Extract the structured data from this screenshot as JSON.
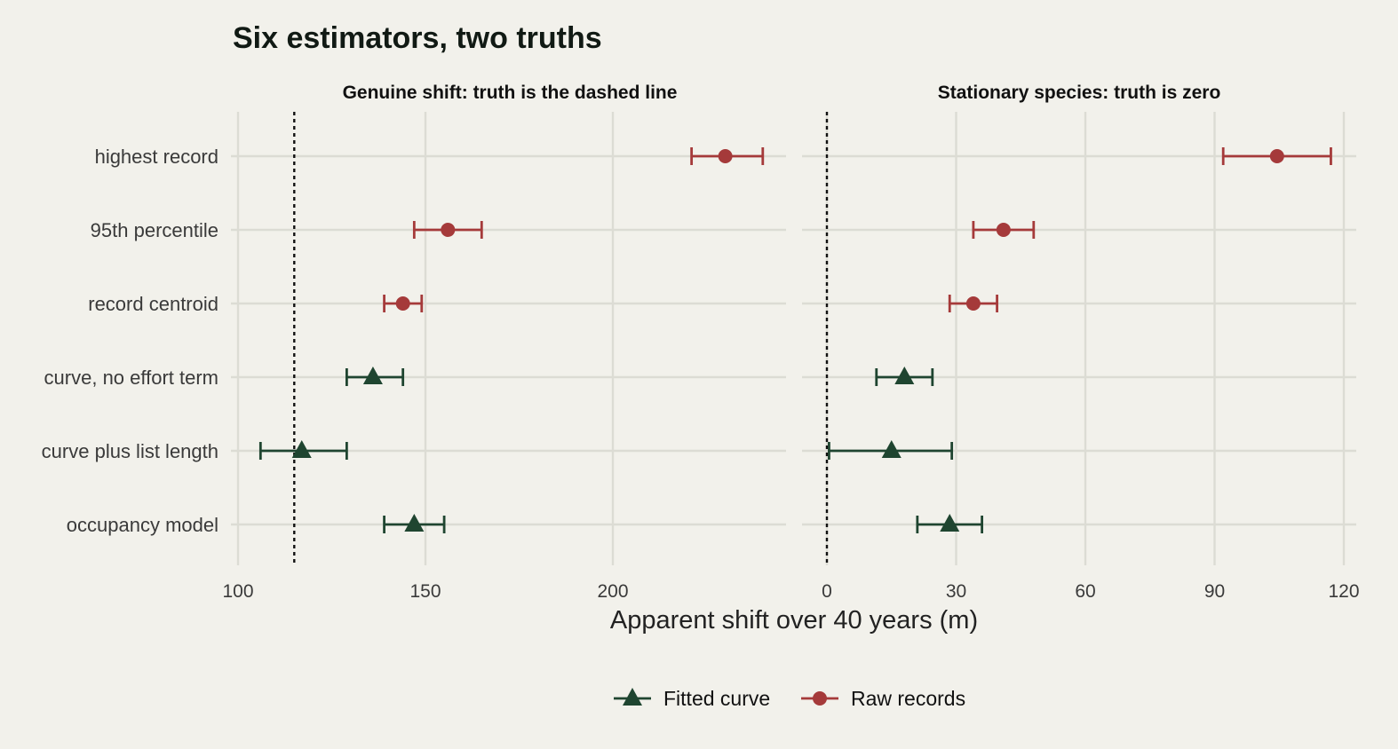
{
  "chart_data": {
    "type": "scatter",
    "title": "Six estimators, two truths",
    "xlabel": "Apparent shift over 40 years (m)",
    "categories": [
      "highest record",
      "95th percentile",
      "record centroid",
      "curve, no effort term",
      "curve plus list length",
      "occupancy model"
    ],
    "colors": {
      "fitted": "#1f4530",
      "raw": "#a53a3a",
      "background": "#f2f1eb"
    },
    "legend": {
      "position": "bottom",
      "items": [
        {
          "key": "fitted",
          "label": "Fitted curve",
          "marker": "triangle"
        },
        {
          "key": "raw",
          "label": "Raw records",
          "marker": "circle"
        }
      ]
    },
    "panels": [
      {
        "strip": "Genuine shift: truth is the dashed line",
        "truth": 115,
        "xlim": [
          100,
          246
        ],
        "ticks": [
          "100",
          "150",
          "200"
        ],
        "tick_values": [
          100,
          150,
          200
        ],
        "points": [
          {
            "estimator": "highest record",
            "group": "raw",
            "estimate": 230,
            "lo": 221,
            "hi": 240
          },
          {
            "estimator": "95th percentile",
            "group": "raw",
            "estimate": 156,
            "lo": 147,
            "hi": 165
          },
          {
            "estimator": "record centroid",
            "group": "raw",
            "estimate": 144,
            "lo": 139,
            "hi": 149
          },
          {
            "estimator": "curve, no effort term",
            "group": "fitted",
            "estimate": 136,
            "lo": 129,
            "hi": 144
          },
          {
            "estimator": "curve plus list length",
            "group": "fitted",
            "estimate": 117,
            "lo": 106,
            "hi": 129
          },
          {
            "estimator": "occupancy model",
            "group": "fitted",
            "estimate": 147,
            "lo": 139,
            "hi": 155
          }
        ]
      },
      {
        "strip": "Stationary species: truth is zero",
        "truth": 0,
        "xlim": [
          0,
          124
        ],
        "ticks": [
          "0",
          "30",
          "60",
          "90",
          "120"
        ],
        "tick_values": [
          0,
          30,
          60,
          90,
          120
        ],
        "points": [
          {
            "estimator": "highest record",
            "group": "raw",
            "estimate": 104.5,
            "lo": 92,
            "hi": 117
          },
          {
            "estimator": "95th percentile",
            "group": "raw",
            "estimate": 41,
            "lo": 34,
            "hi": 48
          },
          {
            "estimator": "record centroid",
            "group": "raw",
            "estimate": 34,
            "lo": 28.5,
            "hi": 39.5
          },
          {
            "estimator": "curve, no effort term",
            "group": "fitted",
            "estimate": 18,
            "lo": 11.5,
            "hi": 24.5
          },
          {
            "estimator": "curve plus list length",
            "group": "fitted",
            "estimate": 15,
            "lo": 0.5,
            "hi": 29
          },
          {
            "estimator": "occupancy model",
            "group": "fitted",
            "estimate": 28.5,
            "lo": 21,
            "hi": 36
          }
        ]
      }
    ]
  }
}
